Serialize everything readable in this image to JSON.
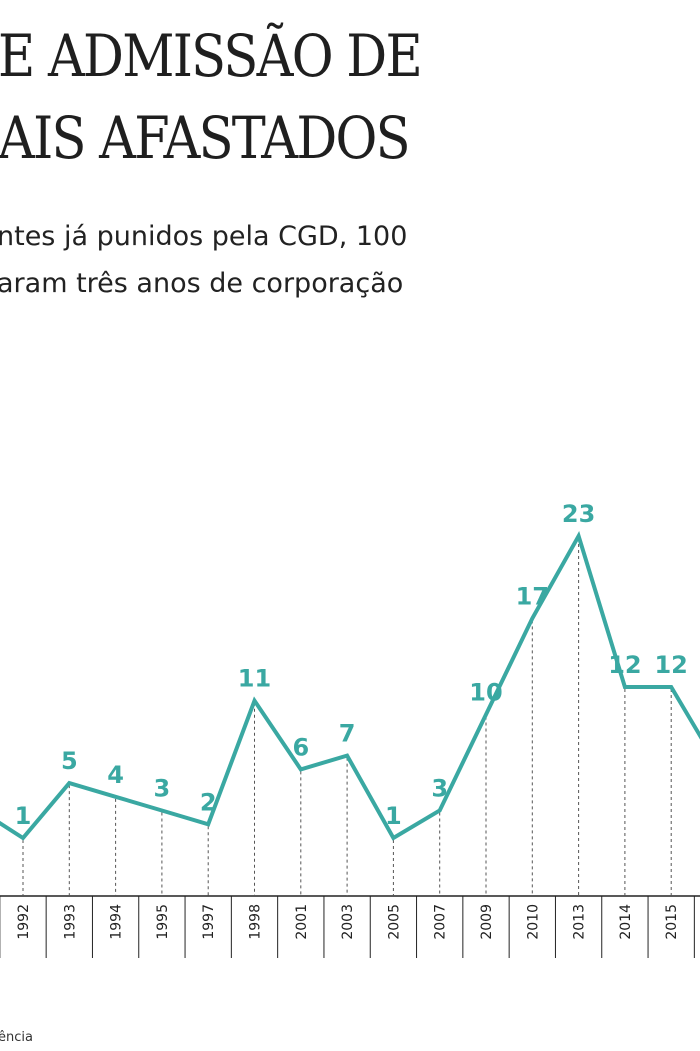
{
  "header": {
    "title_lines": [
      "E ADMISSÃO DE",
      "AIS AFASTADOS"
    ],
    "subtitle_lines": [
      "ntes já punidos pela CGD, 100",
      "aram três anos de corporação"
    ]
  },
  "source": "ência",
  "colors": {
    "line": "#3aa8a2",
    "label": "#3aa8a2",
    "axis": "#222222",
    "text": "#222222"
  },
  "chart_data": {
    "type": "line",
    "x": [
      "1992",
      "1993",
      "1994",
      "1995",
      "1997",
      "1998",
      "2001",
      "2003",
      "2005",
      "2007",
      "2009",
      "2010",
      "2013",
      "2014",
      "2015"
    ],
    "values": [
      1,
      5,
      4,
      3,
      2,
      11,
      6,
      7,
      1,
      3,
      10,
      17,
      23,
      12,
      12
    ],
    "data_labels": [
      "1",
      "5",
      "4",
      "3",
      "2",
      "11",
      "6",
      "7",
      "1",
      "3",
      "10",
      "17",
      "23",
      "12",
      "12"
    ],
    "ylim": [
      0,
      27
    ],
    "grid": false,
    "xlabel": "",
    "ylabel": ""
  }
}
